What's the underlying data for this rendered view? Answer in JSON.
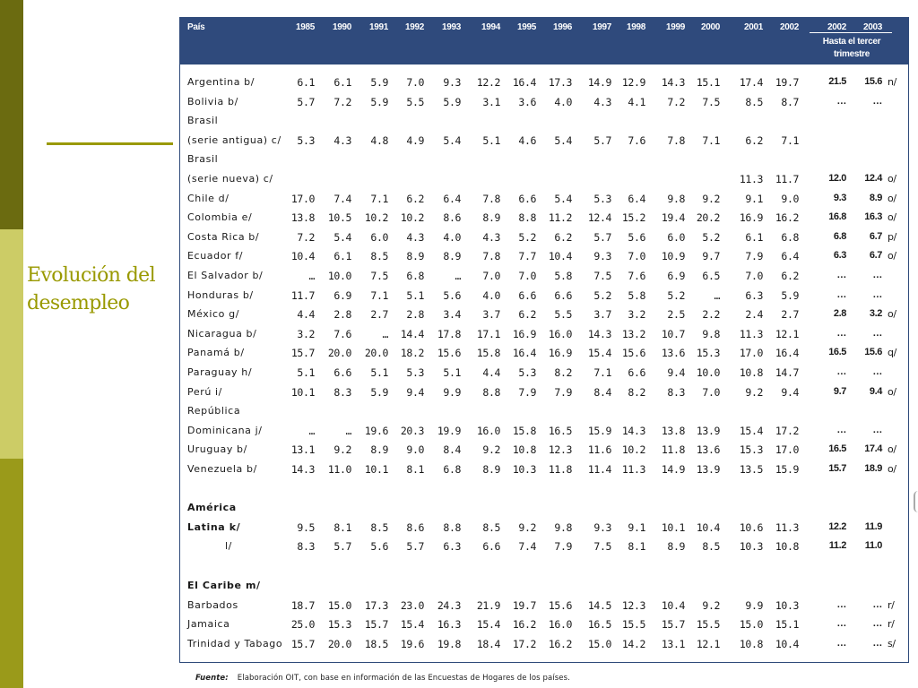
{
  "slide": {
    "title": "Evolución del desempleo"
  },
  "table": {
    "header": {
      "country_label": "País",
      "years": [
        "1985",
        "1990",
        "1991",
        "1992",
        "1993",
        "1994",
        "1995",
        "1996",
        "1997",
        "1998",
        "1999",
        "2000",
        "2001",
        "2002",
        "2002",
        "2003"
      ],
      "partial_note": "Hasta el tercer trimestre"
    },
    "rows": [
      {
        "label": "Argentina b/",
        "values": [
          "6.1",
          "6.1",
          "5.9",
          "7.0",
          "9.3",
          "12.2",
          "16.4",
          "17.3",
          "14.9",
          "12.9",
          "14.3",
          "15.1",
          "17.4",
          "19.7",
          "21.5",
          "15.6"
        ],
        "note": "n/"
      },
      {
        "label": "Bolivia b/",
        "values": [
          "5.7",
          "7.2",
          "5.9",
          "5.5",
          "5.9",
          "3.1",
          "3.6",
          "4.0",
          "4.3",
          "4.1",
          "7.2",
          "7.5",
          "8.5",
          "8.7",
          "…",
          "…"
        ],
        "note": ""
      },
      {
        "label": "Brasil",
        "values": [
          "",
          "",
          "",
          "",
          "",
          "",
          "",
          "",
          "",
          "",
          "",
          "",
          "",
          "",
          "",
          ""
        ],
        "note": ""
      },
      {
        "label": "(serie antigua) c/",
        "values": [
          "5.3",
          "4.3",
          "4.8",
          "4.9",
          "5.4",
          "5.1",
          "4.6",
          "5.4",
          "5.7",
          "7.6",
          "7.8",
          "7.1",
          "6.2",
          "7.1",
          "",
          ""
        ],
        "note": ""
      },
      {
        "label": "Brasil",
        "values": [
          "",
          "",
          "",
          "",
          "",
          "",
          "",
          "",
          "",
          "",
          "",
          "",
          "",
          "",
          "",
          ""
        ],
        "note": ""
      },
      {
        "label": "(serie nueva) c/",
        "values": [
          "",
          "",
          "",
          "",
          "",
          "",
          "",
          "",
          "",
          "",
          "",
          "",
          "11.3",
          "11.7",
          "12.0",
          "12.4"
        ],
        "note": "o/"
      },
      {
        "label": "Chile d/",
        "values": [
          "17.0",
          "7.4",
          "7.1",
          "6.2",
          "6.4",
          "7.8",
          "6.6",
          "5.4",
          "5.3",
          "6.4",
          "9.8",
          "9.2",
          "9.1",
          "9.0",
          "9.3",
          "8.9"
        ],
        "note": "o/"
      },
      {
        "label": "Colombia e/",
        "values": [
          "13.8",
          "10.5",
          "10.2",
          "10.2",
          "8.6",
          "8.9",
          "8.8",
          "11.2",
          "12.4",
          "15.2",
          "19.4",
          "20.2",
          "16.9",
          "16.2",
          "16.8",
          "16.3"
        ],
        "note": "o/"
      },
      {
        "label": "Costa Rica b/",
        "values": [
          "7.2",
          "5.4",
          "6.0",
          "4.3",
          "4.0",
          "4.3",
          "5.2",
          "6.2",
          "5.7",
          "5.6",
          "6.0",
          "5.2",
          "6.1",
          "6.8",
          "6.8",
          "6.7"
        ],
        "note": "p/"
      },
      {
        "label": "Ecuador f/",
        "values": [
          "10.4",
          "6.1",
          "8.5",
          "8.9",
          "8.9",
          "7.8",
          "7.7",
          "10.4",
          "9.3",
          "7.0",
          "10.9",
          "9.7",
          "7.9",
          "6.4",
          "6.3",
          "6.7"
        ],
        "note": "o/"
      },
      {
        "label": "El Salvador b/",
        "values": [
          "…",
          "10.0",
          "7.5",
          "6.8",
          "…",
          "7.0",
          "7.0",
          "5.8",
          "7.5",
          "7.6",
          "6.9",
          "6.5",
          "7.0",
          "6.2",
          "…",
          "…"
        ],
        "note": ""
      },
      {
        "label": "Honduras b/",
        "values": [
          "11.7",
          "6.9",
          "7.1",
          "5.1",
          "5.6",
          "4.0",
          "6.6",
          "6.6",
          "5.2",
          "5.8",
          "5.2",
          "…",
          "6.3",
          "5.9",
          "…",
          "…"
        ],
        "note": ""
      },
      {
        "label": "México g/",
        "values": [
          "4.4",
          "2.8",
          "2.7",
          "2.8",
          "3.4",
          "3.7",
          "6.2",
          "5.5",
          "3.7",
          "3.2",
          "2.5",
          "2.2",
          "2.4",
          "2.7",
          "2.8",
          "3.2"
        ],
        "note": "o/"
      },
      {
        "label": "Nicaragua b/",
        "values": [
          "3.2",
          "7.6",
          "…",
          "14.4",
          "17.8",
          "17.1",
          "16.9",
          "16.0",
          "14.3",
          "13.2",
          "10.7",
          "9.8",
          "11.3",
          "12.1",
          "…",
          "…"
        ],
        "note": ""
      },
      {
        "label": "Panamá b/",
        "values": [
          "15.7",
          "20.0",
          "20.0",
          "18.2",
          "15.6",
          "15.8",
          "16.4",
          "16.9",
          "15.4",
          "15.6",
          "13.6",
          "15.3",
          "17.0",
          "16.4",
          "16.5",
          "15.6"
        ],
        "note": "q/"
      },
      {
        "label": "Paraguay h/",
        "values": [
          "5.1",
          "6.6",
          "5.1",
          "5.3",
          "5.1",
          "4.4",
          "5.3",
          "8.2",
          "7.1",
          "6.6",
          "9.4",
          "10.0",
          "10.8",
          "14.7",
          "…",
          "…"
        ],
        "note": ""
      },
      {
        "label": "Perú i/",
        "values": [
          "10.1",
          "8.3",
          "5.9",
          "9.4",
          "9.9",
          "8.8",
          "7.9",
          "7.9",
          "8.4",
          "8.2",
          "8.3",
          "7.0",
          "9.2",
          "9.4",
          "9.7",
          "9.4"
        ],
        "note": "o/"
      },
      {
        "label": "República",
        "values": [
          "",
          "",
          "",
          "",
          "",
          "",
          "",
          "",
          "",
          "",
          "",
          "",
          "",
          "",
          "",
          ""
        ],
        "note": ""
      },
      {
        "label": "Dominicana j/",
        "values": [
          "…",
          "…",
          "19.6",
          "20.3",
          "19.9",
          "16.0",
          "15.8",
          "16.5",
          "15.9",
          "14.3",
          "13.8",
          "13.9",
          "15.4",
          "17.2",
          "…",
          "…"
        ],
        "note": ""
      },
      {
        "label": "Uruguay b/",
        "values": [
          "13.1",
          "9.2",
          "8.9",
          "9.0",
          "8.4",
          "9.2",
          "10.8",
          "12.3",
          "11.6",
          "10.2",
          "11.8",
          "13.6",
          "15.3",
          "17.0",
          "16.5",
          "17.4"
        ],
        "note": "o/"
      },
      {
        "label": "Venezuela b/",
        "values": [
          "14.3",
          "11.0",
          "10.1",
          "8.1",
          "6.8",
          "8.9",
          "10.3",
          "11.8",
          "11.4",
          "11.3",
          "14.9",
          "13.9",
          "13.5",
          "15.9",
          "15.7",
          "18.9"
        ],
        "note": "o/"
      }
    ],
    "region_rows": [
      {
        "label": "América",
        "values": [
          "",
          "",
          "",
          "",
          "",
          "",
          "",
          "",
          "",
          "",
          "",
          "",
          "",
          "",
          "",
          ""
        ],
        "note": "",
        "bold": true
      },
      {
        "label": "Latina k/",
        "values": [
          "9.5",
          "8.1",
          "8.5",
          "8.6",
          "8.8",
          "8.5",
          "9.2",
          "9.8",
          "9.3",
          "9.1",
          "10.1",
          "10.4",
          "10.6",
          "11.3",
          "12.2",
          "11.9"
        ],
        "note": "",
        "bold": true
      },
      {
        "label": "l/",
        "values": [
          "8.3",
          "5.7",
          "5.6",
          "5.7",
          "6.3",
          "6.6",
          "7.4",
          "7.9",
          "7.5",
          "8.1",
          "8.9",
          "8.5",
          "10.3",
          "10.8",
          "11.2",
          "11.0"
        ],
        "note": "",
        "bold": false
      }
    ],
    "caribbean_rows": [
      {
        "label": "El Caribe m/",
        "values": [
          "",
          "",
          "",
          "",
          "",
          "",
          "",
          "",
          "",
          "",
          "",
          "",
          "",
          "",
          "",
          ""
        ],
        "note": "",
        "bold": true
      },
      {
        "label": "Barbados",
        "values": [
          "18.7",
          "15.0",
          "17.3",
          "23.0",
          "24.3",
          "21.9",
          "19.7",
          "15.6",
          "14.5",
          "12.3",
          "10.4",
          "9.2",
          "9.9",
          "10.3",
          "…",
          "…"
        ],
        "note": "r/"
      },
      {
        "label": "Jamaica",
        "values": [
          "25.0",
          "15.3",
          "15.7",
          "15.4",
          "16.3",
          "15.4",
          "16.2",
          "16.0",
          "16.5",
          "15.5",
          "15.7",
          "15.5",
          "15.0",
          "15.1",
          "…",
          "…"
        ],
        "note": "r/"
      },
      {
        "label": "Trinidad y Tabago",
        "values": [
          "15.7",
          "20.0",
          "18.5",
          "19.6",
          "19.8",
          "18.4",
          "17.2",
          "16.2",
          "15.0",
          "14.2",
          "13.1",
          "12.1",
          "10.8",
          "10.4",
          "…",
          "…"
        ],
        "note": "s/"
      }
    ]
  },
  "source": {
    "label": "Fuente:",
    "text": "Elaboración OIT, con base en información de las Encuestas de Hogares de los países."
  }
}
